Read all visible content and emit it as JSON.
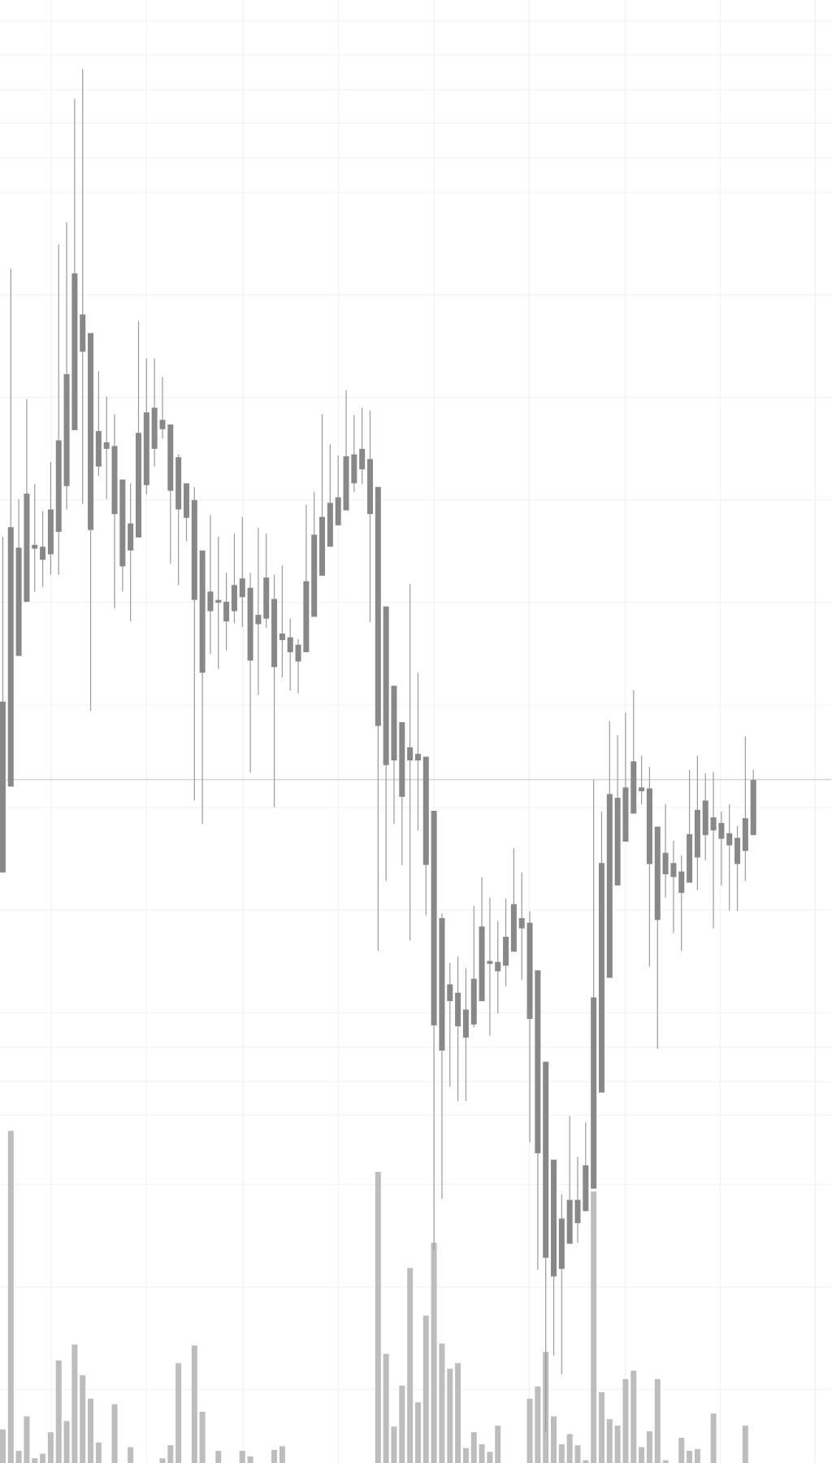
{
  "chart_data": {
    "type": "candlestick",
    "open": [
      633,
      725,
      865,
      923,
      980,
      968,
      974,
      998,
      1047,
      1107,
      1191,
      1000,
      1068,
      1087,
      1017,
      961,
      978,
      992,
      1048,
      1087,
      1108,
      1042,
      1022,
      1013,
      925,
      847,
      913,
      922,
      902,
      913,
      928,
      860,
      899,
      905,
      853,
      882,
      869,
      859,
      869,
      907,
      951,
      982,
      1005,
      1021,
      1050,
      1065,
      1017,
      790,
      748,
      753,
      714,
      753,
      753,
      641,
      469,
      442,
      495,
      468,
      456,
      470,
      495,
      535,
      527,
      533,
      548,
      573,
      476,
      332,
      220,
      200,
      208,
      235,
      257,
      270,
      294,
      397,
      520,
      619,
      666,
      696,
      720,
      642,
      582,
      631,
      628,
      611,
      622,
      649,
      673,
      678,
      669,
      662,
      642,
      656,
      673
    ],
    "high": [
      993,
      1280,
      1033,
      1140,
      1049,
      1020,
      1073,
      1306,
      1330,
      1462,
      1494,
      1211,
      1170,
      1143,
      1124,
      1054,
      1050,
      1224,
      1184,
      1184,
      1164,
      1113,
      1081,
      1050,
      1046,
      978,
      1016,
      993,
      954,
      996,
      1014,
      954,
      1002,
      996,
      952,
      962,
      905,
      883,
      1027,
      1041,
      1124,
      1092,
      1080,
      1150,
      1123,
      1131,
      1128,
      1046,
      918,
      833,
      794,
      942,
      847,
      757,
      699,
      589,
      536,
      543,
      530,
      597,
      628,
      606,
      581,
      605,
      659,
      633,
      591,
      528,
      430,
      325,
      288,
      372,
      328,
      365,
      732,
      698,
      795,
      780,
      804,
      828,
      758,
      746,
      682,
      706,
      667,
      651,
      743,
      758,
      739,
      741,
      698,
      706,
      683,
      779,
      743
    ],
    "low": [
      633,
      725,
      865,
      923,
      934,
      939,
      952,
      952,
      1022,
      1107,
      1028,
      806,
      1058,
      1033,
      916,
      934,
      902,
      992,
      1038,
      1068,
      1098,
      964,
      941,
      988,
      710,
      685,
      867,
      851,
      871,
      900,
      896,
      740,
      823,
      895,
      703,
      842,
      828,
      825,
      869,
      907,
      951,
      982,
      1005,
      1021,
      1041,
      1049,
      901,
      549,
      624,
      685,
      641,
      560,
      678,
      587,
      228,
      283,
      403,
      388,
      388,
      467,
      495,
      458,
      482,
      511,
      548,
      518,
      344,
      207,
      33,
      115,
      95,
      235,
      236,
      270,
      294,
      397,
      520,
      619,
      666,
      696,
      706,
      532,
      444,
      606,
      568,
      549,
      622,
      614,
      646,
      573,
      619,
      592,
      592,
      624,
      673
    ],
    "close": [
      816,
      1003,
      981,
      1039,
      984,
      982,
      1022,
      1096,
      1167,
      1275,
      1231,
      1211,
      1106,
      1094,
      1090,
      1054,
      1007,
      1104,
      1126,
      1131,
      1118,
      1113,
      1078,
      1050,
      1032,
      978,
      934,
      925,
      923,
      941,
      948,
      938,
      909,
      949,
      926,
      889,
      885,
      877,
      945,
      995,
      1014,
      1029,
      1035,
      1079,
      1081,
      1087,
      1076,
      1046,
      918,
      833,
      794,
      767,
      760,
      757,
      699,
      584,
      513,
      504,
      486,
      519,
      575,
      538,
      537,
      564,
      599,
      584,
      579,
      528,
      430,
      325,
      262,
      282,
      282,
      319,
      499,
      643,
      717,
      713,
      724,
      752,
      724,
      723,
      682,
      654,
      643,
      634,
      674,
      700,
      710,
      692,
      686,
      675,
      670,
      691,
      732
    ],
    "volume": [
      36,
      356,
      13,
      50,
      5,
      10,
      33,
      110,
      45,
      127,
      94,
      69,
      22,
      0,
      63,
      0,
      17,
      0,
      0,
      0,
      5,
      19,
      107,
      0,
      126,
      55,
      0,
      13,
      0,
      0,
      13,
      7,
      0,
      0,
      14,
      18,
      0,
      0,
      0,
      0,
      0,
      0,
      0,
      0,
      0,
      0,
      0,
      312,
      117,
      39,
      83,
      209,
      65,
      158,
      236,
      128,
      101,
      107,
      16,
      33,
      20,
      12,
      40,
      0,
      0,
      0,
      69,
      82,
      119,
      50,
      20,
      31,
      19,
      3,
      291,
      76,
      47,
      40,
      90,
      99,
      17,
      34,
      90,
      3,
      0,
      27,
      13,
      15,
      0,
      53,
      0,
      0,
      0,
      40,
      0
    ],
    "ylim": [
      0,
      1568
    ],
    "volume_lim": [
      0,
      1568
    ],
    "candle_color": "#888888",
    "wick_color": "#9a9a9a",
    "volume_color": "#bdbdbd"
  }
}
